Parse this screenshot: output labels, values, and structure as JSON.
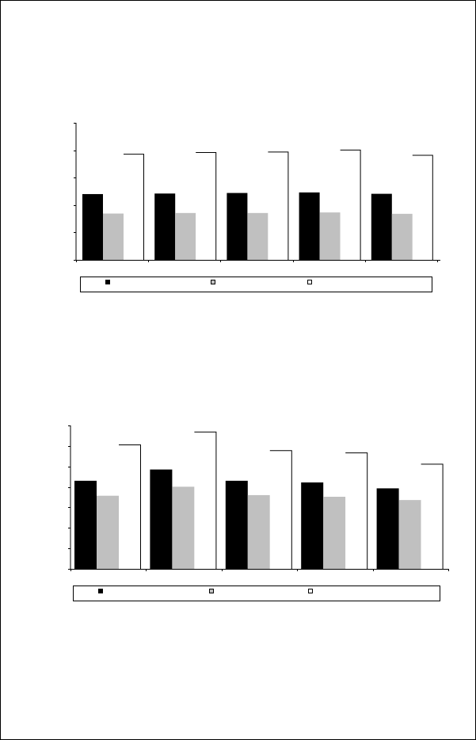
{
  "chart_data": [
    {
      "type": "bar",
      "categories": [
        "",
        "",
        "",
        "",
        ""
      ],
      "ylim": [
        0,
        5
      ],
      "grid": false,
      "legend_position": "bottom",
      "series": [
        {
          "values": [
            2.4,
            2.42,
            2.44,
            2.46,
            2.41
          ],
          "color": "#000000"
        },
        {
          "values": [
            1.69,
            1.71,
            1.71,
            1.73,
            1.68
          ],
          "color": "#c0c0c0"
        },
        {
          "values": [
            3.87,
            3.93,
            3.95,
            4.02,
            3.83
          ],
          "color": "#ffffff"
        }
      ]
    },
    {
      "type": "bar",
      "categories": [
        "",
        "",
        "",
        "",
        ""
      ],
      "ylim": [
        0,
        7
      ],
      "grid": false,
      "legend_position": "bottom",
      "series": [
        {
          "values": [
            4.3,
            4.85,
            4.3,
            4.22,
            3.93
          ],
          "color": "#000000"
        },
        {
          "values": [
            3.57,
            4.01,
            3.6,
            3.52,
            3.36
          ],
          "color": "#c0c0c0"
        },
        {
          "values": [
            6.07,
            6.7,
            5.79,
            5.68,
            5.13
          ],
          "color": "#ffffff"
        }
      ]
    }
  ]
}
